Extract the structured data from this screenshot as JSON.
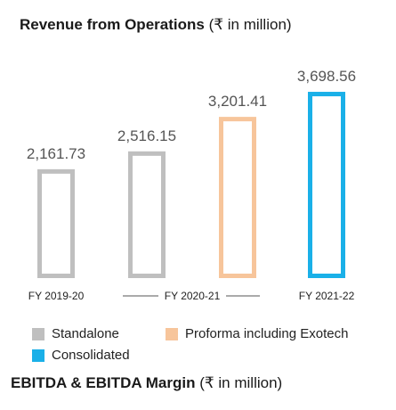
{
  "chart_data": {
    "type": "bar",
    "title": "Revenue from Operations",
    "title_unit": "(₹ in million)",
    "categories": [
      "FY 2019-20",
      "FY 2020-21",
      "FY 2020-21",
      "FY 2021-22"
    ],
    "x_labels": [
      "FY 2019-20",
      "FY 2020-21",
      "FY 2021-22"
    ],
    "values": [
      2161.73,
      2516.15,
      3201.41,
      3698.56
    ],
    "value_labels": [
      "2,161.73",
      "2,516.15",
      "3,201.41",
      "3,698.56"
    ],
    "series_per_bar": [
      "Standalone",
      "Standalone",
      "Proforma including Exotech",
      "Consolidated"
    ],
    "legend": [
      {
        "name": "Standalone",
        "color": "#bfbfbf"
      },
      {
        "name": "Proforma including Exotech",
        "color": "#f7c59b"
      },
      {
        "name": "Consolidated",
        "color": "#1ab0e8"
      }
    ],
    "bar_colors": [
      "#bfbfbf",
      "#bfbfbf",
      "#f7c59b",
      "#1ab0e8"
    ],
    "legend_placement": "bottom",
    "grid": false
  },
  "next_section": {
    "title": "EBITDA & EBITDA Margin",
    "unit": "(₹ in million)"
  }
}
